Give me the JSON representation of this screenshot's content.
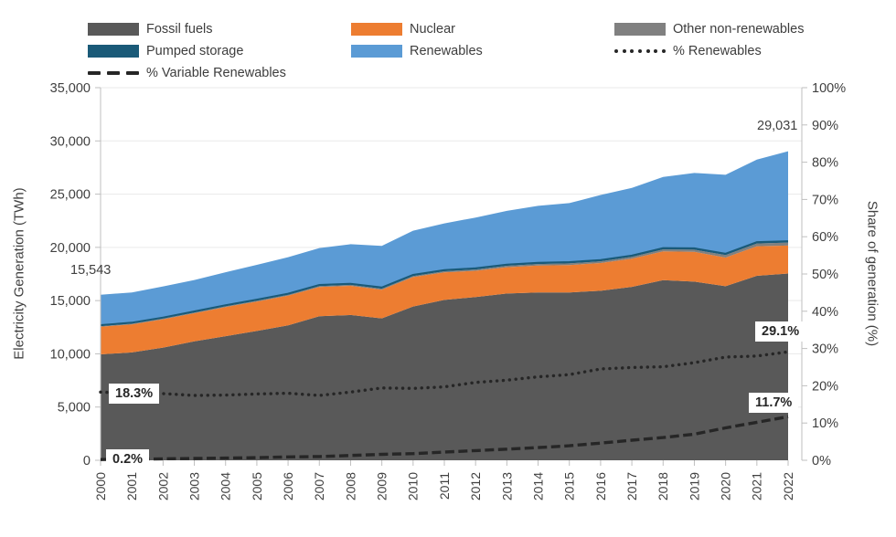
{
  "annotations": {
    "total_start": "15,543",
    "total_end": "29,031",
    "ren_start": "18.3%",
    "ren_end": "29.1%",
    "var_start": "0.2%",
    "var_end": "11.7%"
  },
  "chart_data": {
    "type": "area",
    "stacked": true,
    "title": "",
    "ylabel_left": "Electricity Generation (TWh)",
    "ylabel_right": "Share of generation (%)",
    "ylim_left": [
      0,
      35000
    ],
    "ylim_right": [
      0,
      100
    ],
    "grid": "horizontal-light",
    "legend_position": "top",
    "x": [
      "2000",
      "2001",
      "2002",
      "2003",
      "2004",
      "2005",
      "2006",
      "2007",
      "2008",
      "2009",
      "2010",
      "2011",
      "2012",
      "2013",
      "2014",
      "2015",
      "2016",
      "2017",
      "2018",
      "2019",
      "2020",
      "2021",
      "2022"
    ],
    "y_ticks_left": [
      {
        "value": 0,
        "label": "0"
      },
      {
        "value": 5000,
        "label": "5,000"
      },
      {
        "value": 10000,
        "label": "10,000"
      },
      {
        "value": 15000,
        "label": "15,000"
      },
      {
        "value": 20000,
        "label": "20,000"
      },
      {
        "value": 25000,
        "label": "25,000"
      },
      {
        "value": 30000,
        "label": "30,000"
      },
      {
        "value": 35000,
        "label": "35,000"
      }
    ],
    "y_ticks_right": [
      {
        "value": 0,
        "label": "0%"
      },
      {
        "value": 10,
        "label": "10%"
      },
      {
        "value": 20,
        "label": "20%"
      },
      {
        "value": 30,
        "label": "30%"
      },
      {
        "value": 40,
        "label": "40%"
      },
      {
        "value": 50,
        "label": "50%"
      },
      {
        "value": 60,
        "label": "60%"
      },
      {
        "value": 70,
        "label": "70%"
      },
      {
        "value": 80,
        "label": "80%"
      },
      {
        "value": 90,
        "label": "90%"
      },
      {
        "value": 100,
        "label": "100%"
      }
    ],
    "series": [
      {
        "name": "Fossil fuels",
        "type": "area",
        "axis": "left",
        "swatch": "box",
        "color": "#595959",
        "values": [
          9952,
          10130,
          10585,
          11180,
          11655,
          12145,
          12675,
          13530,
          13650,
          13330,
          14450,
          15060,
          15340,
          15660,
          15760,
          15770,
          15920,
          16290,
          16920,
          16780,
          16350,
          17330,
          17540
        ]
      },
      {
        "name": "Nuclear",
        "type": "area",
        "axis": "left",
        "swatch": "box",
        "color": "#ED7D31",
        "values": [
          2591,
          2638,
          2661,
          2635,
          2738,
          2768,
          2791,
          2748,
          2739,
          2697,
          2756,
          2584,
          2461,
          2478,
          2535,
          2571,
          2612,
          2639,
          2701,
          2796,
          2693,
          2776,
          2632
        ]
      },
      {
        "name": "Other non-renewables",
        "type": "area",
        "axis": "left",
        "swatch": "box",
        "color": "#808080",
        "values": [
          60,
          62,
          65,
          68,
          72,
          76,
          80,
          85,
          90,
          95,
          100,
          110,
          120,
          130,
          140,
          150,
          160,
          175,
          190,
          210,
          230,
          260,
          280
        ]
      },
      {
        "name": "Pumped storage",
        "type": "area",
        "axis": "left",
        "swatch": "box",
        "color": "#1A5A78",
        "values": [
          95,
          96,
          97,
          98,
          99,
          100,
          102,
          104,
          106,
          108,
          110,
          112,
          114,
          116,
          118,
          120,
          122,
          124,
          126,
          128,
          128,
          130,
          131
        ]
      },
      {
        "name": "Renewables",
        "type": "area",
        "axis": "left",
        "swatch": "box",
        "color": "#5B9BD5",
        "values": [
          2845,
          2844,
          2922,
          2949,
          3096,
          3271,
          3432,
          3473,
          3715,
          3900,
          4154,
          4384,
          4765,
          5046,
          5347,
          5549,
          6106,
          6362,
          6683,
          7076,
          7419,
          7754,
          8448
        ]
      },
      {
        "name": "% Renewables",
        "type": "dotted-line",
        "axis": "right",
        "swatch": "dotted",
        "color": "#262626",
        "values": [
          18.3,
          18.0,
          17.9,
          17.4,
          17.5,
          17.8,
          18.0,
          17.4,
          18.3,
          19.4,
          19.3,
          19.7,
          20.9,
          21.5,
          22.4,
          23.0,
          24.5,
          24.9,
          25.1,
          26.2,
          27.7,
          28.0,
          29.1
        ]
      },
      {
        "name": "% Variable Renewables",
        "type": "dashed-line",
        "axis": "right",
        "swatch": "dashed",
        "color": "#262626",
        "values": [
          0.2,
          0.3,
          0.4,
          0.5,
          0.6,
          0.7,
          0.9,
          1.0,
          1.3,
          1.6,
          1.8,
          2.2,
          2.6,
          3.0,
          3.4,
          3.9,
          4.6,
          5.4,
          6.1,
          7.0,
          8.7,
          10.2,
          11.7
        ]
      }
    ],
    "totals": {
      "start_year_total": 15543,
      "end_year_total": 29031
    },
    "colors": {
      "grid": "#E9E9E9",
      "axis": "#BFBFBF",
      "tick_label": "#404040",
      "line": "#262626"
    }
  }
}
